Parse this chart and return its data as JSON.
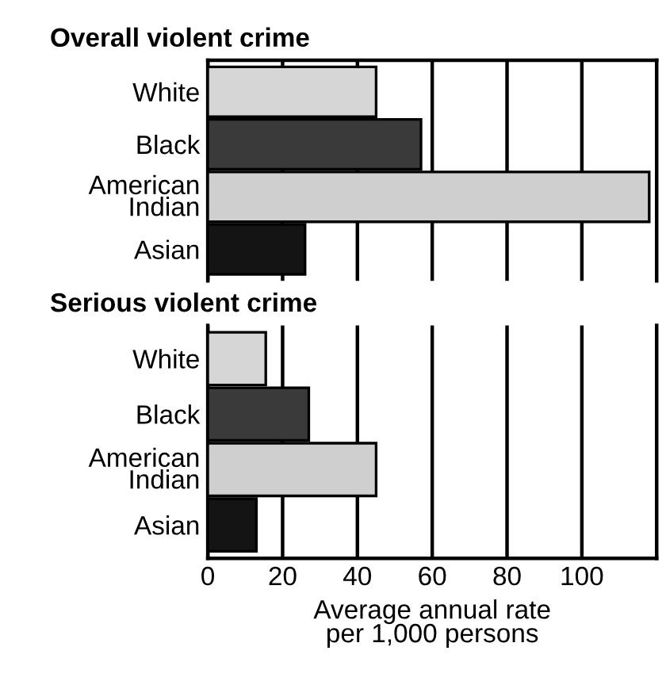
{
  "chart_data": [
    {
      "type": "bar",
      "orientation": "horizontal",
      "title": "Overall violent crime",
      "categories": [
        "White",
        "Black",
        "American\nIndian",
        "Asian"
      ],
      "values": [
        45,
        57,
        118,
        26
      ],
      "colors": [
        "#d6d6d6",
        "#3a3a3a",
        "#cfcfcf",
        "#141414"
      ],
      "xlim": [
        0,
        120
      ],
      "xticks": [
        0,
        20,
        40,
        60,
        80,
        100
      ],
      "grid": "x",
      "tick_labels": "y"
    },
    {
      "type": "bar",
      "orientation": "horizontal",
      "title": "Serious violent crime",
      "categories": [
        "White",
        "Black",
        "American\nIndian",
        "Asian"
      ],
      "values": [
        15.5,
        27,
        45,
        13
      ],
      "colors": [
        "#d6d6d6",
        "#3a3a3a",
        "#cfcfcf",
        "#141414"
      ],
      "xlim": [
        0,
        120
      ],
      "xticks": [
        0,
        20,
        40,
        60,
        80,
        100
      ],
      "grid": "x",
      "xlabel": "Average annual rate\nper 1,000 persons"
    }
  ]
}
